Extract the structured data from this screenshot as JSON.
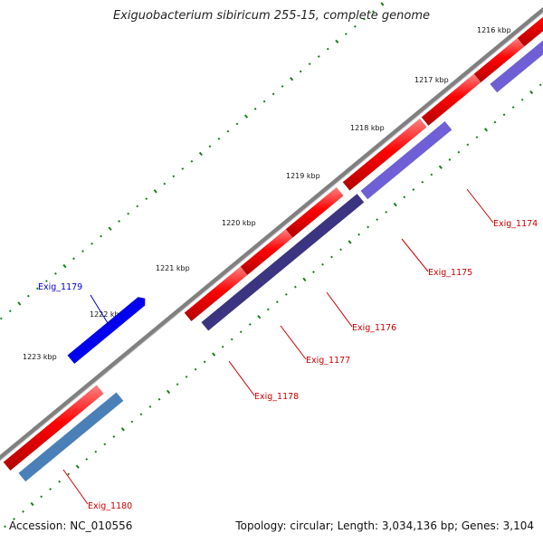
{
  "title": "Exiguobacterium sibiricum 255-15, complete genome",
  "footer": {
    "accession": "Accession: NC_010556",
    "topology": "Topology: circular; Length: 3,034,136 bp; Genes: 3,104"
  },
  "ticks": [
    {
      "label": "1216 kbp",
      "kbp": 1216
    },
    {
      "label": "1217 kbp",
      "kbp": 1217
    },
    {
      "label": "1218 kbp",
      "kbp": 1218
    },
    {
      "label": "1219 kbp",
      "kbp": 1219
    },
    {
      "label": "1220 kbp",
      "kbp": 1220
    },
    {
      "label": "1221 kbp",
      "kbp": 1221
    },
    {
      "label": "1222 kbp",
      "kbp": 1222
    },
    {
      "label": "1223 kbp",
      "kbp": 1223
    }
  ],
  "genes": [
    {
      "label": "Exig_1174",
      "cds_color": "#6f5fd6",
      "label_color": "#cc0000"
    },
    {
      "label": "Exig_1175",
      "cds_color": "#6f5fd6",
      "label_color": "#cc0000"
    },
    {
      "label": "Exig_1176",
      "cds_color": "#3b3480",
      "label_color": "#cc0000"
    },
    {
      "label": "Exig_1177",
      "cds_color": "#3b3480",
      "label_color": "#cc0000"
    },
    {
      "label": "Exig_1178",
      "cds_color": "#3b3480",
      "label_color": "#cc0000"
    },
    {
      "label": "Exig_1179",
      "cds_color": "#0000ee",
      "label_color": "#0000cc"
    },
    {
      "label": "Exig_1180",
      "cds_color": "#4a80b8",
      "label_color": "#cc0000"
    }
  ],
  "colors": {
    "backbone": "#808080",
    "tick_marks": "#1a7f1a",
    "gene_feature": "#ff0000"
  }
}
